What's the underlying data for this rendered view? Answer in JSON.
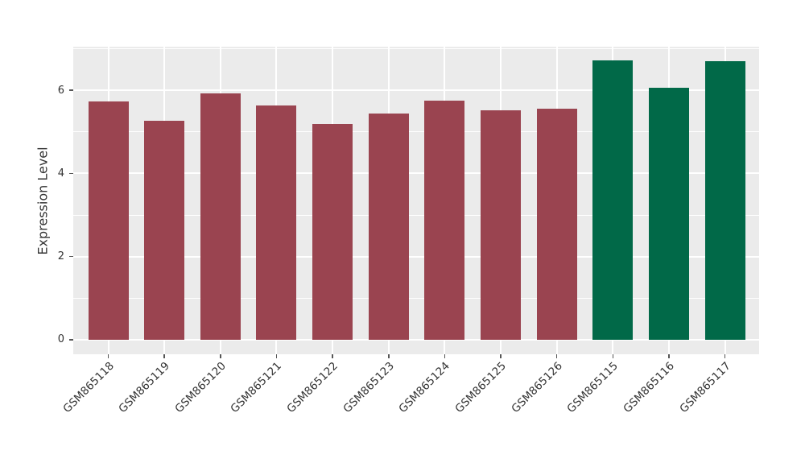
{
  "chart_data": {
    "type": "bar",
    "title": "",
    "xlabel": "",
    "ylabel": "Expression Level",
    "categories": [
      "GSM865118",
      "GSM865119",
      "GSM865120",
      "GSM865121",
      "GSM865122",
      "GSM865123",
      "GSM865124",
      "GSM865125",
      "GSM865126",
      "GSM865115",
      "GSM865116",
      "GSM865117"
    ],
    "values": [
      5.74,
      5.27,
      5.92,
      5.63,
      5.2,
      5.45,
      5.76,
      5.51,
      5.55,
      6.73,
      6.07,
      6.7
    ],
    "bar_colors": [
      "#9a4450",
      "#9a4450",
      "#9a4450",
      "#9a4450",
      "#9a4450",
      "#9a4450",
      "#9a4450",
      "#9a4450",
      "#9a4450",
      "#016948",
      "#016948",
      "#016948"
    ],
    "group_colors": {
      "maroon_group": "#9a4450",
      "green_group": "#016948"
    },
    "yticks": [
      0,
      2,
      4,
      6
    ],
    "minor_yticks": [
      1,
      3,
      5,
      7
    ],
    "ylim": [
      -0.35,
      7.05
    ],
    "grid": "on",
    "legend": "none",
    "x_tick_rotation_deg": 45,
    "panel_background": "#ebebeb",
    "grid_color": "#ffffff",
    "text_color": "#333333"
  }
}
